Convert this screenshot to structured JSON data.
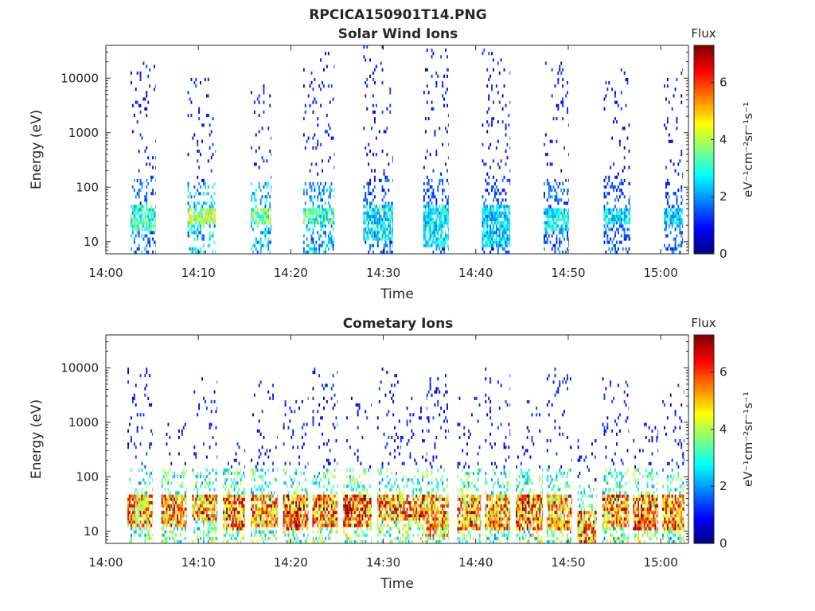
{
  "figure": {
    "title": "RPCICA150901T14.PNG",
    "colormap": [
      "#00007f",
      "#0000ff",
      "#007fff",
      "#00ffff",
      "#7fff7f",
      "#ffff00",
      "#ff7f00",
      "#ff0000",
      "#7f0000"
    ]
  },
  "chart_data": [
    {
      "type": "heatmap",
      "title": "Solar Wind Ions",
      "xlabel": "Time",
      "ylabel": "Energy (eV)",
      "x_ticks": [
        "14:00",
        "14:10",
        "14:20",
        "14:30",
        "14:40",
        "14:50",
        "15:00"
      ],
      "xlim": [
        "14:00",
        "15:03"
      ],
      "y_scale": "log",
      "y_ticks": [
        "10",
        "100",
        "1000",
        "10000"
      ],
      "ylim": [
        6,
        40000
      ],
      "colorbar": {
        "title": "Flux",
        "label": "eV⁻¹cm⁻²sr⁻¹s⁻¹",
        "ticks": [
          "0",
          "2",
          "4",
          "6"
        ],
        "range": [
          0,
          7.3
        ]
      },
      "bursts": [
        {
          "start": "14:02:40",
          "end": "14:05:20",
          "low_flux": 3.5,
          "low_band": [
            15,
            45
          ],
          "scatter_flux": 1.0,
          "scatter_max": 20000
        },
        {
          "start": "14:08:50",
          "end": "14:11:50",
          "low_flux": 4.5,
          "low_band": [
            20,
            40
          ],
          "scatter_flux": 1.0,
          "scatter_max": 10000
        },
        {
          "start": "14:15:40",
          "end": "14:17:50",
          "low_flux": 4.2,
          "low_band": [
            20,
            40
          ],
          "scatter_flux": 1.0,
          "scatter_max": 8000
        },
        {
          "start": "14:21:20",
          "end": "14:24:40",
          "low_flux": 3.8,
          "low_band": [
            20,
            40
          ],
          "scatter_flux": 1.0,
          "scatter_max": 30000
        },
        {
          "start": "14:27:50",
          "end": "14:31:00",
          "low_flux": 3.0,
          "low_band": [
            10,
            45
          ],
          "scatter_flux": 1.0,
          "scatter_max": 40000
        },
        {
          "start": "14:34:20",
          "end": "14:37:00",
          "low_flux": 3.0,
          "low_band": [
            8,
            45
          ],
          "scatter_flux": 1.0,
          "scatter_max": 40000
        },
        {
          "start": "14:40:40",
          "end": "14:43:40",
          "low_flux": 2.8,
          "low_band": [
            8,
            45
          ],
          "scatter_flux": 1.0,
          "scatter_max": 40000
        },
        {
          "start": "14:47:20",
          "end": "14:50:00",
          "low_flux": 3.0,
          "low_band": [
            15,
            40
          ],
          "scatter_flux": 1.0,
          "scatter_max": 30000
        },
        {
          "start": "14:53:50",
          "end": "14:56:40",
          "low_flux": 2.8,
          "low_band": [
            20,
            40
          ],
          "scatter_flux": 1.0,
          "scatter_max": 20000
        },
        {
          "start": "15:00:20",
          "end": "15:02:20",
          "low_flux": 2.8,
          "low_band": [
            20,
            40
          ],
          "scatter_flux": 1.0,
          "scatter_max": 15000
        }
      ]
    },
    {
      "type": "heatmap",
      "title": "Cometary Ions",
      "xlabel": "Time",
      "ylabel": "Energy (eV)",
      "x_ticks": [
        "14:00",
        "14:10",
        "14:20",
        "14:30",
        "14:40",
        "14:50",
        "15:00"
      ],
      "xlim": [
        "14:00",
        "15:03"
      ],
      "y_scale": "log",
      "y_ticks": [
        "10",
        "100",
        "1000",
        "10000"
      ],
      "ylim": [
        6,
        40000
      ],
      "colorbar": {
        "title": "Flux",
        "label": "eV⁻¹cm⁻²sr⁻¹s⁻¹",
        "ticks": [
          "0",
          "2",
          "4",
          "6"
        ],
        "range": [
          0,
          7.3
        ]
      },
      "bursts": [
        {
          "start": "14:02:20",
          "end": "14:05:00",
          "low_flux": 6.0,
          "low_band": [
            12,
            45
          ],
          "scatter_flux": 1.0,
          "scatter_max": 10000
        },
        {
          "start": "14:06:00",
          "end": "14:08:40",
          "low_flux": 6.3,
          "low_band": [
            12,
            45
          ],
          "scatter_flux": 1.0,
          "scatter_max": 1000
        },
        {
          "start": "14:09:20",
          "end": "14:12:00",
          "low_flux": 6.3,
          "low_band": [
            15,
            45
          ],
          "scatter_flux": 1.0,
          "scatter_max": 8000
        },
        {
          "start": "14:12:40",
          "end": "14:15:00",
          "low_flux": 6.5,
          "low_band": [
            10,
            45
          ],
          "scatter_flux": 1.0,
          "scatter_max": 500
        },
        {
          "start": "14:15:40",
          "end": "14:18:30",
          "low_flux": 6.2,
          "low_band": [
            12,
            45
          ],
          "scatter_flux": 1.0,
          "scatter_max": 8000
        },
        {
          "start": "14:19:10",
          "end": "14:21:50",
          "low_flux": 6.5,
          "low_band": [
            10,
            45
          ],
          "scatter_flux": 1.0,
          "scatter_max": 3000
        },
        {
          "start": "14:22:20",
          "end": "14:25:00",
          "low_flux": 6.3,
          "low_band": [
            12,
            45
          ],
          "scatter_flux": 1.0,
          "scatter_max": 10000
        },
        {
          "start": "14:25:40",
          "end": "14:28:40",
          "low_flux": 6.8,
          "low_band": [
            12,
            45
          ],
          "scatter_flux": 1.0,
          "scatter_max": 3000
        },
        {
          "start": "14:29:20",
          "end": "14:31:50",
          "low_flux": 6.2,
          "low_band": [
            15,
            45
          ],
          "scatter_flux": 1.0,
          "scatter_max": 10000
        },
        {
          "start": "14:31:50",
          "end": "14:34:40",
          "low_flux": 6.5,
          "low_band": [
            15,
            45
          ],
          "scatter_flux": 1.0,
          "scatter_max": 3000
        },
        {
          "start": "14:34:40",
          "end": "14:37:00",
          "low_flux": 6.0,
          "low_band": [
            8,
            45
          ],
          "scatter_flux": 1.0,
          "scatter_max": 8000
        },
        {
          "start": "14:38:00",
          "end": "14:40:30",
          "low_flux": 6.3,
          "low_band": [
            10,
            45
          ],
          "scatter_flux": 1.0,
          "scatter_max": 3000
        },
        {
          "start": "14:41:00",
          "end": "14:43:40",
          "low_flux": 6.0,
          "low_band": [
            10,
            45
          ],
          "scatter_flux": 1.0,
          "scatter_max": 10000
        },
        {
          "start": "14:44:20",
          "end": "14:47:10",
          "low_flux": 6.5,
          "low_band": [
            10,
            45
          ],
          "scatter_flux": 1.0,
          "scatter_max": 3000
        },
        {
          "start": "14:47:40",
          "end": "14:50:20",
          "low_flux": 6.0,
          "low_band": [
            10,
            45
          ],
          "scatter_flux": 1.0,
          "scatter_max": 10000
        },
        {
          "start": "14:51:00",
          "end": "14:53:00",
          "low_flux": 6.3,
          "low_band": [
            6,
            25
          ],
          "scatter_flux": 1.0,
          "scatter_max": 500
        },
        {
          "start": "14:53:40",
          "end": "14:56:30",
          "low_flux": 6.2,
          "low_band": [
            12,
            45
          ],
          "scatter_flux": 1.0,
          "scatter_max": 8000
        },
        {
          "start": "14:57:00",
          "end": "14:59:40",
          "low_flux": 6.5,
          "low_band": [
            10,
            45
          ],
          "scatter_flux": 1.0,
          "scatter_max": 1000
        },
        {
          "start": "15:00:10",
          "end": "15:02:30",
          "low_flux": 6.2,
          "low_band": [
            10,
            45
          ],
          "scatter_flux": 1.0,
          "scatter_max": 5000
        }
      ]
    }
  ]
}
